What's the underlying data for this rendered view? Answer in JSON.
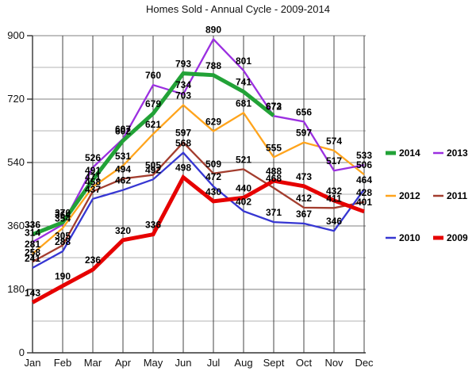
{
  "title": "Homes Sold - Annual Cycle - 2009-2014",
  "axes": {
    "y_ticks": [
      900,
      720,
      540,
      360,
      180,
      0
    ],
    "y_minor": [
      810,
      630,
      450,
      270,
      90
    ],
    "ylim": [
      0,
      900
    ],
    "months": [
      "Jan",
      "Feb",
      "Mar",
      "Apr",
      "May",
      "Jun",
      "Jul",
      "Aug",
      "Sept",
      "Oct",
      "Nov",
      "Dec"
    ]
  },
  "chart_data": {
    "type": "line",
    "title": "Homes Sold - Annual Cycle - 2009-2014",
    "xlabel": "",
    "ylabel": "",
    "ylim": [
      0,
      900
    ],
    "grid": "on",
    "legend_position": "right",
    "categories": [
      "Jan",
      "Feb",
      "Mar",
      "Apr",
      "May",
      "Jun",
      "Jul",
      "Aug",
      "Sept",
      "Oct",
      "Nov",
      "Dec"
    ],
    "series": [
      {
        "name": "2014",
        "color": "#22a237",
        "thick": true,
        "values": [
          336,
          370,
          491,
          602,
          679,
          793,
          788,
          741,
          673,
          null,
          null,
          null
        ]
      },
      {
        "name": "2013",
        "color": "#9b2fe0",
        "thick": false,
        "values": [
          314,
          364,
          526,
          607,
          760,
          734,
          890,
          801,
          672,
          656,
          517,
          533
        ]
      },
      {
        "name": "2012",
        "color": "#ffa41c",
        "thick": false,
        "values": [
          281,
          354,
          471,
          531,
          621,
          703,
          629,
          681,
          555,
          597,
          574,
          506
        ]
      },
      {
        "name": "2011",
        "color": "#a33d2e",
        "thick": false,
        "values": [
          258,
          305,
          458,
          494,
          505,
          597,
          509,
          521,
          468,
          412,
          411,
          428
        ]
      },
      {
        "name": "2010",
        "color": "#3636d2",
        "thick": false,
        "values": [
          241,
          288,
          437,
          462,
          492,
          568,
          472,
          402,
          371,
          367,
          346,
          464
        ]
      },
      {
        "name": "2009",
        "color": "#e60000",
        "thick": true,
        "values": [
          143,
          190,
          236,
          320,
          336,
          498,
          430,
          440,
          488,
          473,
          432,
          401
        ]
      }
    ]
  },
  "legend": {
    "rows": [
      [
        "2014",
        "2013"
      ],
      [
        "2012",
        "2011"
      ],
      [
        "2010",
        "2009"
      ]
    ]
  },
  "colors": {
    "grid_vertical": "#444444",
    "grid_major": "#808080",
    "grid_minor": "#b3b3b3",
    "axis": "#333333"
  }
}
